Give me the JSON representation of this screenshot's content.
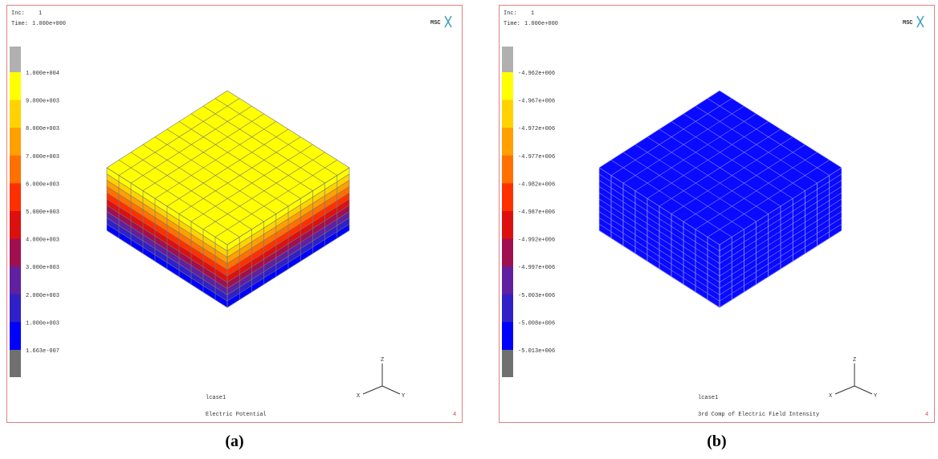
{
  "panels": [
    {
      "inc_label": "Inc:",
      "inc": "1",
      "time_label": "Time:",
      "time": "1.000e+000",
      "logo": "MSC",
      "legend": [
        "1.000e+004",
        "9.000e+003",
        "8.000e+003",
        "7.000e+003",
        "6.000e+003",
        "5.000e+003",
        "4.000e+003",
        "3.000e+003",
        "2.000e+003",
        "1.000e+003",
        "1.663e-007"
      ],
      "axes": [
        "Z",
        "Y",
        "X"
      ],
      "lcase": "lcase1",
      "title": "Electric Potential",
      "page": "4",
      "caption": "(a)"
    },
    {
      "inc_label": "Inc:",
      "inc": "1",
      "time_label": "Time:",
      "time": "1.000e+000",
      "logo": "MSC",
      "legend": [
        "-4.962e+006",
        "-4.967e+006",
        "-4.972e+006",
        "-4.977e+006",
        "-4.982e+006",
        "-4.987e+006",
        "-4.992e+006",
        "-4.997e+006",
        "-5.003e+006",
        "-5.008e+006",
        "-5.013e+006"
      ],
      "axes": [
        "Z",
        "Y",
        "X"
      ],
      "lcase": "lcase1",
      "title": "3rd Comp of Electric Field Intensity",
      "page": "4",
      "caption": "(b)"
    }
  ]
}
